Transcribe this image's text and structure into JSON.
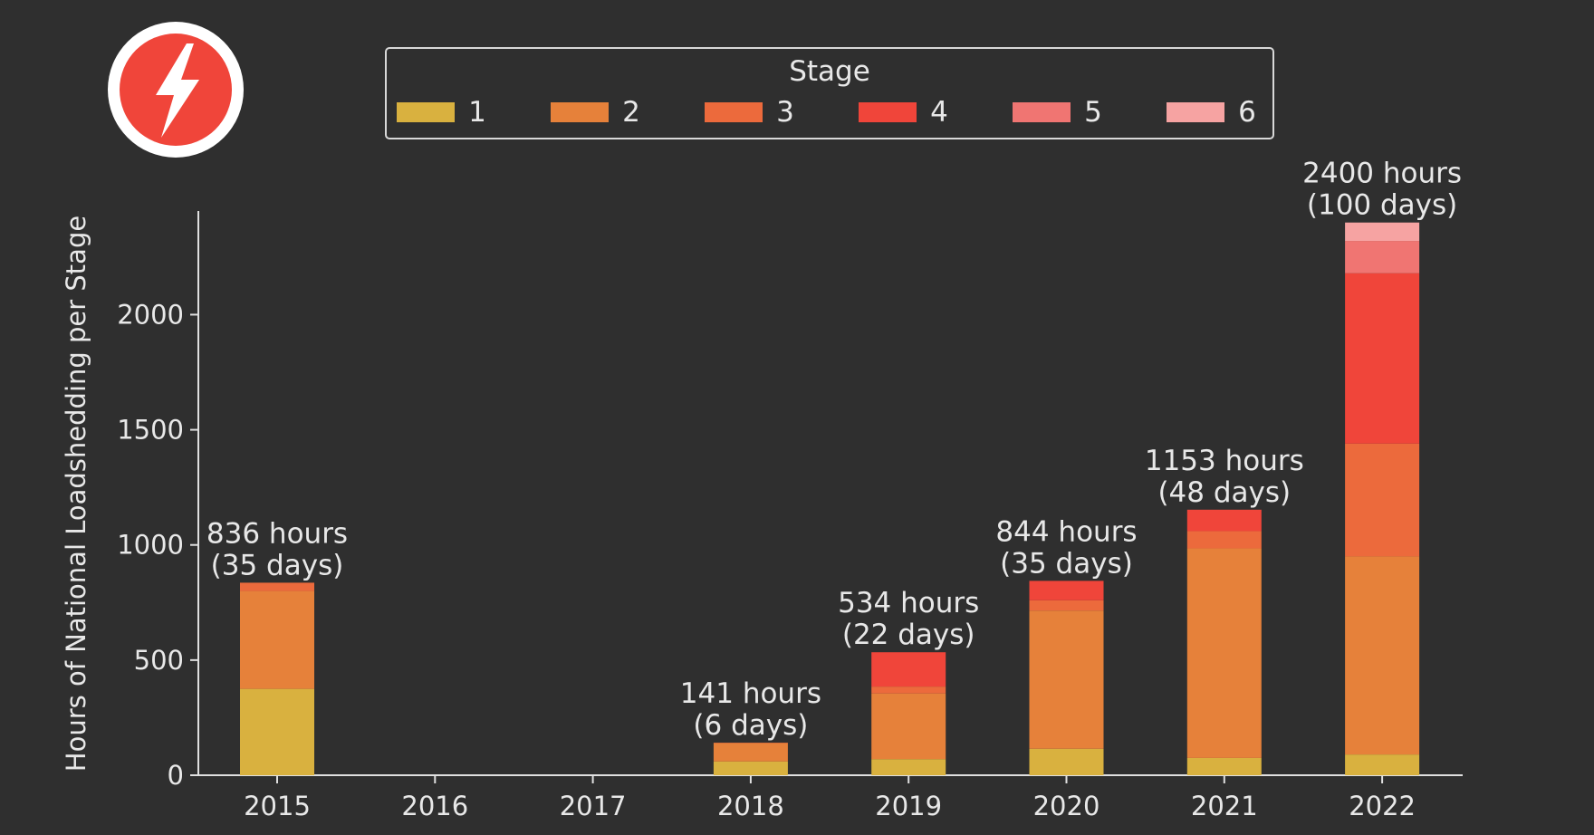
{
  "logo": {
    "icon": "lightning-bolt-icon",
    "circle_color": "#ffffff",
    "inner_color": "#f0453a"
  },
  "chart_data": {
    "type": "bar",
    "stacked": true,
    "categories": [
      "2015",
      "2016",
      "2017",
      "2018",
      "2019",
      "2020",
      "2021",
      "2022"
    ],
    "series": [
      {
        "name": "1",
        "color": "#d9b13f",
        "values": [
          375,
          0,
          0,
          60,
          70,
          115,
          75,
          90
        ]
      },
      {
        "name": "2",
        "color": "#e6813a",
        "values": [
          425,
          0,
          0,
          80,
          285,
          600,
          910,
          860
        ]
      },
      {
        "name": "3",
        "color": "#ec6a3c",
        "values": [
          36,
          0,
          0,
          1,
          30,
          45,
          75,
          490
        ]
      },
      {
        "name": "4",
        "color": "#f0453a",
        "values": [
          0,
          0,
          0,
          0,
          149,
          84,
          93,
          740
        ]
      },
      {
        "name": "5",
        "color": "#f07572",
        "values": [
          0,
          0,
          0,
          0,
          0,
          0,
          0,
          140
        ]
      },
      {
        "name": "6",
        "color": "#f6a3a2",
        "values": [
          0,
          0,
          0,
          0,
          0,
          0,
          0,
          80
        ]
      }
    ],
    "annotations": [
      {
        "category": "2015",
        "lines": [
          "836 hours",
          "(35 days)"
        ],
        "total": 836
      },
      {
        "category": "2018",
        "lines": [
          "141 hours",
          "(6 days)"
        ],
        "total": 141
      },
      {
        "category": "2019",
        "lines": [
          "534 hours",
          "(22 days)"
        ],
        "total": 534
      },
      {
        "category": "2020",
        "lines": [
          "844 hours",
          "(35 days)"
        ],
        "total": 844
      },
      {
        "category": "2021",
        "lines": [
          "1153 hours",
          "(48 days)"
        ],
        "total": 1153
      },
      {
        "category": "2022",
        "lines": [
          "2400 hours",
          "(100 days)"
        ],
        "total": 2400
      }
    ],
    "yticks": [
      0,
      500,
      1000,
      1500,
      2000
    ],
    "ylim": [
      0,
      2450
    ],
    "ylabel": "Hours of National Loadshedding per Stage",
    "xlabel": "",
    "title": "",
    "legend": {
      "title": "Stage",
      "placement": "top",
      "entries": [
        "1",
        "2",
        "3",
        "4",
        "5",
        "6"
      ]
    },
    "grid": false
  }
}
